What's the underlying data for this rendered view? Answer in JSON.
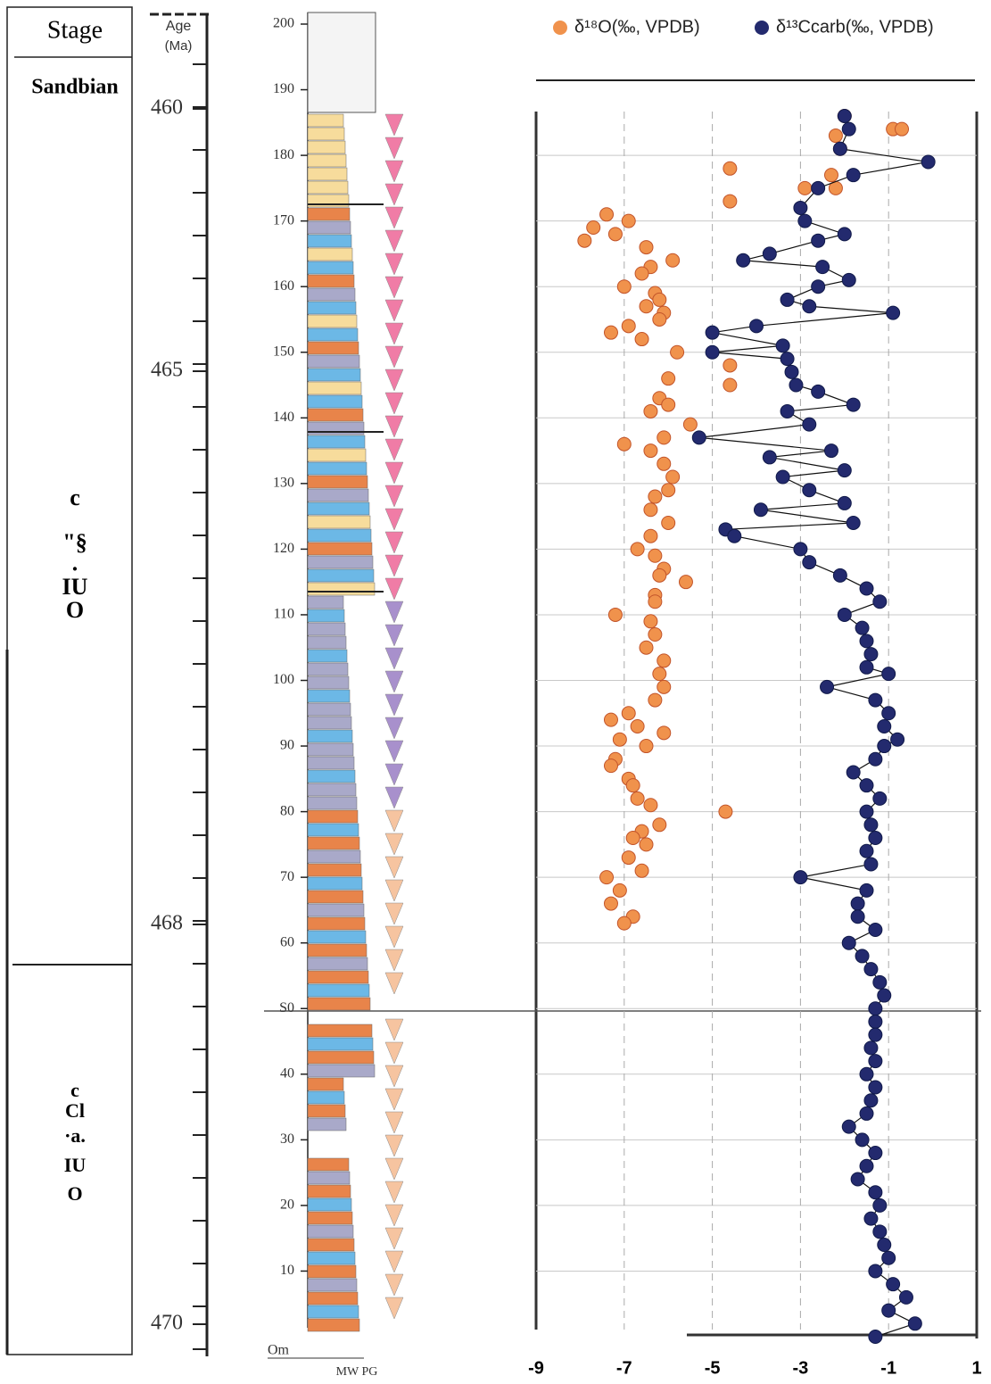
{
  "stage": {
    "header": "Stage",
    "upper": "Sandbian",
    "middle_labels": [
      "c",
      "\"§",
      "·",
      "IU",
      "O"
    ],
    "lower_labels": [
      "c",
      "Cl",
      "·a.",
      "IU",
      "O"
    ]
  },
  "age_axis": {
    "label": "Age",
    "unit": "(Ma)",
    "ticks": [
      460,
      465,
      468,
      470
    ]
  },
  "height_axis": {
    "ticks": [
      200,
      190,
      180,
      170,
      160,
      150,
      140,
      130,
      120,
      110,
      100,
      90,
      80,
      70,
      60,
      {
        "value": 50,
        "label": "S0"
      },
      40,
      30,
      20,
      10,
      {
        "value": 0,
        "label": "Om"
      }
    ],
    "column_labels": "MW PG"
  },
  "chart_data": {
    "type": "scatter",
    "xlim": [
      -9,
      1
    ],
    "xticks": [
      -9,
      -7,
      -5,
      -3,
      -1,
      1
    ],
    "ylim": [
      0,
      200
    ],
    "grid": true,
    "series": [
      {
        "name": "δ¹⁸O(‰, VPDB)",
        "color": "#f0924c",
        "line": false,
        "x": [
          -2.0,
          -0.9,
          -0.7,
          -2.2,
          -2.1,
          -4.6,
          -2.3,
          -2.2,
          -2.9,
          -4.6,
          -7.4,
          -6.9,
          -7.7,
          -7.2,
          -7.9,
          -6.5,
          -5.9,
          -6.4,
          -6.6,
          -7.0,
          -6.3,
          -6.2,
          -6.5,
          -6.1,
          -6.2,
          -6.9,
          -7.3,
          -6.6,
          -5.8,
          -4.6,
          -6.0,
          -4.6,
          -6.2,
          -6.0,
          -6.4,
          -5.5,
          -6.1,
          -7.0,
          -6.4,
          -6.1,
          -5.9,
          -6.0,
          -6.3,
          -6.4,
          -6.0,
          -6.4,
          -6.7,
          -6.3,
          -6.1,
          -6.2,
          -5.6,
          -6.3,
          -6.3,
          -7.2,
          -6.4,
          -6.3,
          -6.5,
          -6.1,
          -6.2,
          -6.1,
          -6.3,
          -6.9,
          -7.3,
          -6.7,
          -6.1,
          -7.1,
          -6.5,
          -7.2,
          -7.3,
          -6.9,
          -6.8,
          -6.7,
          -6.4,
          -4.7,
          -6.2,
          -6.6,
          -6.8,
          -6.5,
          -6.9,
          -6.6,
          -7.4,
          -7.1,
          -7.3,
          -6.8,
          -7.0
        ],
        "y": [
          186,
          184,
          184,
          183,
          181,
          178,
          177,
          175,
          175,
          173,
          171,
          170,
          169,
          168,
          167,
          166,
          164,
          163,
          162,
          160,
          159,
          158,
          157,
          156,
          155,
          154,
          153,
          152,
          150,
          148,
          146,
          145,
          143,
          142,
          141,
          139,
          137,
          136,
          135,
          133,
          131,
          129,
          128,
          126,
          124,
          122,
          120,
          119,
          117,
          116,
          115,
          113,
          112,
          110,
          109,
          107,
          105,
          103,
          101,
          99,
          97,
          95,
          94,
          93,
          92,
          91,
          90,
          88,
          87,
          85,
          84,
          82,
          81,
          80,
          78,
          77,
          76,
          75,
          73,
          71,
          70,
          68,
          66,
          64,
          63
        ]
      },
      {
        "name": "δ¹³Ccarb(‰, VPDB)",
        "color": "#232a6e",
        "line": true,
        "x": [
          -2.0,
          -1.9,
          -2.1,
          -0.1,
          -1.8,
          -2.6,
          -3.0,
          -2.9,
          -2.0,
          -2.6,
          -3.7,
          -4.3,
          -2.5,
          -1.9,
          -2.6,
          -3.3,
          -2.8,
          -0.9,
          -4.0,
          -5.0,
          -3.4,
          -5.0,
          -3.3,
          -3.2,
          -3.1,
          -2.6,
          -1.8,
          -3.3,
          -2.8,
          -5.3,
          -2.3,
          -3.7,
          -2.0,
          -3.4,
          -2.8,
          -2.0,
          -3.9,
          -1.8,
          -4.7,
          -4.5,
          -3.0,
          -2.8,
          -2.1,
          -1.5,
          -1.2,
          -2.0,
          -1.6,
          -1.5,
          -1.4,
          -1.5,
          -1.0,
          -2.4,
          -1.3,
          -1.0,
          -1.1,
          -0.8,
          -1.1,
          -1.3,
          -1.8,
          -1.5,
          -1.2,
          -1.5,
          -1.4,
          -1.3,
          -1.5,
          -1.4,
          -3.0,
          -1.5,
          -1.7,
          -1.7,
          -1.3,
          -1.9,
          -1.6,
          -1.4,
          -1.2,
          -1.1,
          -1.3,
          -1.3,
          -1.3,
          -1.4,
          -1.3,
          -1.5,
          -1.3,
          -1.4,
          -1.5,
          -1.9,
          -1.6,
          -1.3,
          -1.5,
          -1.7,
          -1.3,
          -1.2,
          -1.4,
          -1.2,
          -1.1,
          -1.0,
          -1.3,
          -0.9,
          -0.6,
          -1.0,
          -0.4,
          -1.3
        ],
        "y": [
          186,
          184,
          181,
          179,
          177,
          175,
          172,
          170,
          168,
          167,
          165,
          164,
          163,
          161,
          160,
          158,
          157,
          156,
          154,
          153,
          151,
          150,
          149,
          147,
          145,
          144,
          142,
          141,
          139,
          137,
          135,
          134,
          132,
          131,
          129,
          127,
          126,
          124,
          123,
          122,
          120,
          118,
          116,
          114,
          112,
          110,
          108,
          106,
          104,
          102,
          101,
          99,
          97,
          95,
          93,
          91,
          90,
          88,
          86,
          84,
          82,
          80,
          78,
          76,
          74,
          72,
          70,
          68,
          66,
          64,
          62,
          60,
          58,
          56,
          54,
          52,
          50,
          48,
          46,
          44,
          42,
          40,
          38,
          36,
          34,
          32,
          30,
          28,
          26,
          24,
          22,
          20,
          18,
          16,
          14,
          12,
          10,
          8,
          6,
          4,
          2,
          0
        ]
      }
    ]
  }
}
